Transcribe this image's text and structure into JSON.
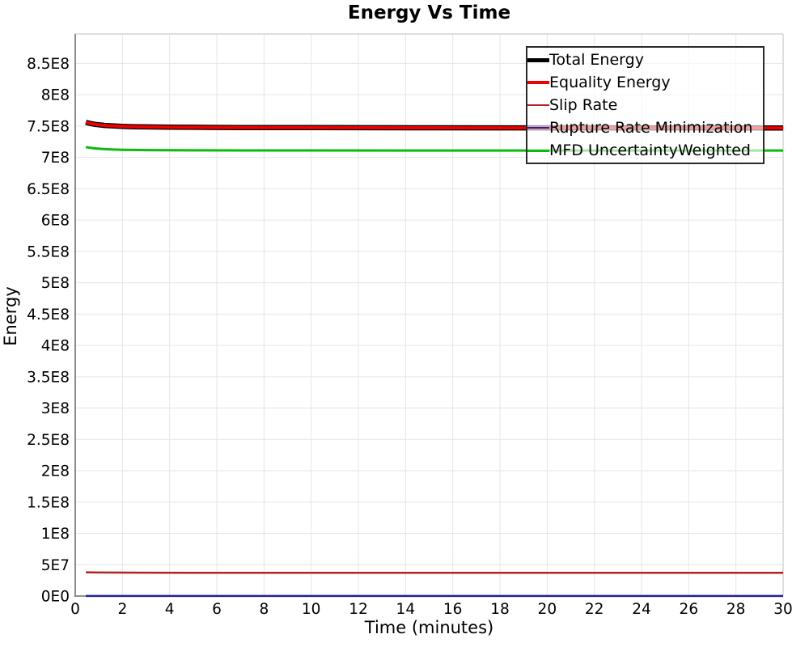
{
  "chart_data": {
    "type": "line",
    "title": "Energy Vs Time",
    "xlabel": "Time (minutes)",
    "ylabel": "Energy",
    "xlim": [
      0,
      30
    ],
    "ylim": [
      0,
      897000000
    ],
    "grid": true,
    "grid_color": "#e6e6e6",
    "axis_color": "#808080",
    "frame_color": "#cccccc",
    "legend_position": "top-right",
    "x_ticks": [
      {
        "value": 0,
        "label": "0"
      },
      {
        "value": 2,
        "label": "2"
      },
      {
        "value": 4,
        "label": "4"
      },
      {
        "value": 6,
        "label": "6"
      },
      {
        "value": 8,
        "label": "8"
      },
      {
        "value": 10,
        "label": "10"
      },
      {
        "value": 12,
        "label": "12"
      },
      {
        "value": 14,
        "label": "14"
      },
      {
        "value": 16,
        "label": "16"
      },
      {
        "value": 18,
        "label": "18"
      },
      {
        "value": 20,
        "label": "20"
      },
      {
        "value": 22,
        "label": "22"
      },
      {
        "value": 24,
        "label": "24"
      },
      {
        "value": 26,
        "label": "26"
      },
      {
        "value": 28,
        "label": "28"
      },
      {
        "value": 30,
        "label": "30"
      }
    ],
    "y_ticks": [
      {
        "value": 0,
        "label": "0E0"
      },
      {
        "value": 50000000,
        "label": "5E7"
      },
      {
        "value": 100000000,
        "label": "1E8"
      },
      {
        "value": 150000000,
        "label": "1.5E8"
      },
      {
        "value": 200000000,
        "label": "2E8"
      },
      {
        "value": 250000000,
        "label": "2.5E8"
      },
      {
        "value": 300000000,
        "label": "3E8"
      },
      {
        "value": 350000000,
        "label": "3.5E8"
      },
      {
        "value": 400000000,
        "label": "4E8"
      },
      {
        "value": 450000000,
        "label": "4.5E8"
      },
      {
        "value": 500000000,
        "label": "5E8"
      },
      {
        "value": 550000000,
        "label": "5.5E8"
      },
      {
        "value": 600000000,
        "label": "6E8"
      },
      {
        "value": 650000000,
        "label": "6.5E8"
      },
      {
        "value": 700000000,
        "label": "7E8"
      },
      {
        "value": 750000000,
        "label": "7.5E8"
      },
      {
        "value": 800000000,
        "label": "8E8"
      },
      {
        "value": 850000000,
        "label": "8.5E8"
      }
    ],
    "series": [
      {
        "name": "Total Energy",
        "color": "#000000",
        "width": 6.5,
        "points": [
          [
            0.45,
            756000000
          ],
          [
            0.6,
            754500000
          ],
          [
            0.8,
            753000000
          ],
          [
            1,
            752000000
          ],
          [
            1.25,
            751000000
          ],
          [
            1.5,
            750500000
          ],
          [
            2,
            749500000
          ],
          [
            2.5,
            749000000
          ],
          [
            3,
            748700000
          ],
          [
            4,
            748300000
          ],
          [
            5,
            748000000
          ],
          [
            7,
            747700000
          ],
          [
            10,
            747500000
          ],
          [
            15,
            747300000
          ],
          [
            20,
            747200000
          ],
          [
            25,
            747100000
          ],
          [
            30,
            747000000
          ]
        ]
      },
      {
        "name": "Equality Energy",
        "color": "#ee0000",
        "width": 4,
        "points": [
          [
            0.45,
            756000000
          ],
          [
            0.6,
            754500000
          ],
          [
            0.8,
            753000000
          ],
          [
            1,
            752000000
          ],
          [
            1.25,
            751000000
          ],
          [
            1.5,
            750500000
          ],
          [
            2,
            749500000
          ],
          [
            2.5,
            749000000
          ],
          [
            3,
            748700000
          ],
          [
            4,
            748300000
          ],
          [
            5,
            748000000
          ],
          [
            7,
            747700000
          ],
          [
            10,
            747500000
          ],
          [
            15,
            747300000
          ],
          [
            20,
            747200000
          ],
          [
            25,
            747100000
          ],
          [
            30,
            747000000
          ]
        ]
      },
      {
        "name": "Slip Rate",
        "color": "#b32222",
        "width": 2.5,
        "points": [
          [
            0.45,
            38000000
          ],
          [
            1,
            37600000
          ],
          [
            2,
            37400000
          ],
          [
            3,
            37300000
          ],
          [
            5,
            37200000
          ],
          [
            10,
            37200000
          ],
          [
            30,
            37200000
          ]
        ]
      },
      {
        "name": "Rupture Rate Minimization",
        "color": "#22229c",
        "width": 2.5,
        "points": [
          [
            0.45,
            100000
          ],
          [
            30,
            100000
          ]
        ]
      },
      {
        "name": "MFD UncertaintyWeighted",
        "color": "#0bbb0b",
        "width": 3,
        "points": [
          [
            0.45,
            716500000
          ],
          [
            0.6,
            715500000
          ],
          [
            0.8,
            714500000
          ],
          [
            1,
            713800000
          ],
          [
            1.25,
            713200000
          ],
          [
            1.5,
            712800000
          ],
          [
            2,
            712200000
          ],
          [
            2.5,
            711900000
          ],
          [
            3,
            711700000
          ],
          [
            4,
            711400000
          ],
          [
            5,
            711300000
          ],
          [
            7,
            711200000
          ],
          [
            10,
            711100000
          ],
          [
            15,
            711000000
          ],
          [
            20,
            711000000
          ],
          [
            25,
            711000000
          ],
          [
            30,
            711000000
          ]
        ]
      }
    ]
  }
}
